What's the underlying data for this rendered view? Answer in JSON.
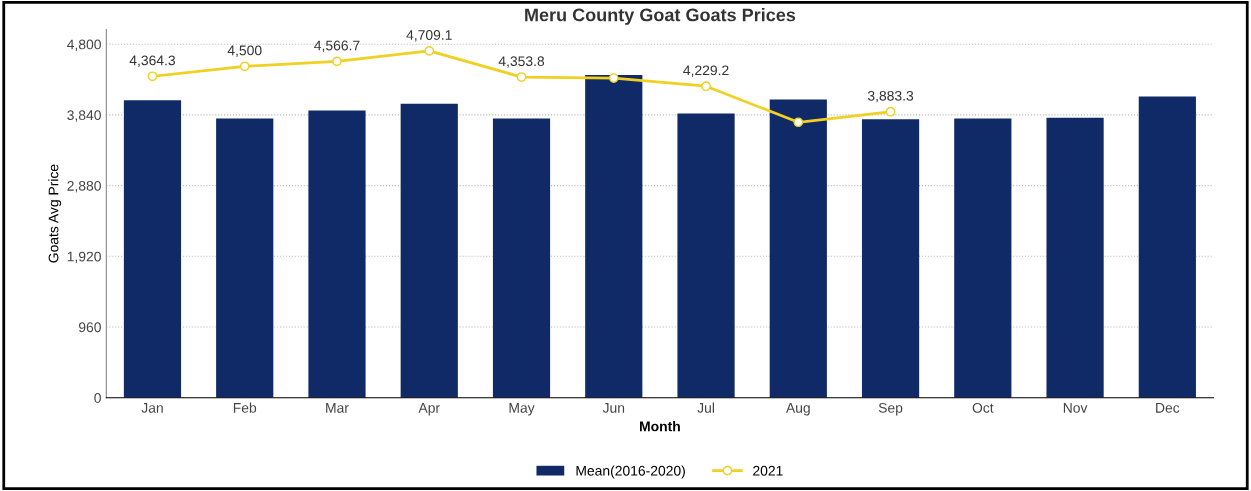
{
  "chart_data": {
    "type": "bar",
    "title": "Meru County Goat Goats Prices",
    "xlabel": "Month",
    "ylabel": "Goats Avg Price",
    "categories": [
      "Jan",
      "Feb",
      "Mar",
      "Apr",
      "May",
      "Jun",
      "Jul",
      "Aug",
      "Sep",
      "Oct",
      "Nov",
      "Dec"
    ],
    "series": [
      {
        "name": "Mean(2016-2020)",
        "color": "#0f2a66",
        "values": [
          4040,
          3790,
          3900,
          3990,
          3790,
          4380,
          3860,
          4050,
          3780,
          3790,
          3800,
          4090
        ]
      },
      {
        "name": "2021",
        "type": "line",
        "color": "#f0d020",
        "marker": "circle",
        "values": [
          4364.3,
          4500,
          4566.7,
          4709.1,
          4353.8,
          4340,
          4229.2,
          3740,
          3883.3,
          null,
          null,
          null
        ],
        "value_labels": [
          "4,364.3",
          "4,500",
          "4,566.7",
          "4,709.1",
          "4,353.8",
          null,
          "4,229.2",
          null,
          "3,883.3",
          null,
          null,
          null
        ]
      }
    ],
    "ylim": [
      0,
      5000
    ],
    "yticks": [
      {
        "value": 0,
        "label": "0"
      },
      {
        "value": 960,
        "label": "960"
      },
      {
        "value": 1920,
        "label": "1,920"
      },
      {
        "value": 2880,
        "label": "2,880"
      },
      {
        "value": 3840,
        "label": "3,840"
      },
      {
        "value": 4800,
        "label": "4,800"
      }
    ],
    "grid": "y",
    "legend": "bottom"
  }
}
